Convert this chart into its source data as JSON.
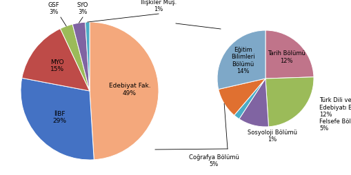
{
  "left_pie": {
    "values": [
      49,
      29,
      15,
      3,
      3,
      1
    ],
    "colors": [
      "#F4A87C",
      "#4472C4",
      "#BE4B48",
      "#9BBB59",
      "#8064A2",
      "#4BACC6"
    ],
    "startangle": 90
  },
  "right_pie": {
    "values": [
      51,
      44,
      16,
      3,
      16,
      45
    ],
    "colors": [
      "#C0748A",
      "#9BBB59",
      "#8064A2",
      "#4BACC6",
      "#E07030",
      "#7EA8C8"
    ],
    "startangle": 90
  },
  "figsize": [
    5.1,
    2.54
  ],
  "dpi": 100,
  "background_color": "#FFFFFF",
  "font_size": 6.0
}
